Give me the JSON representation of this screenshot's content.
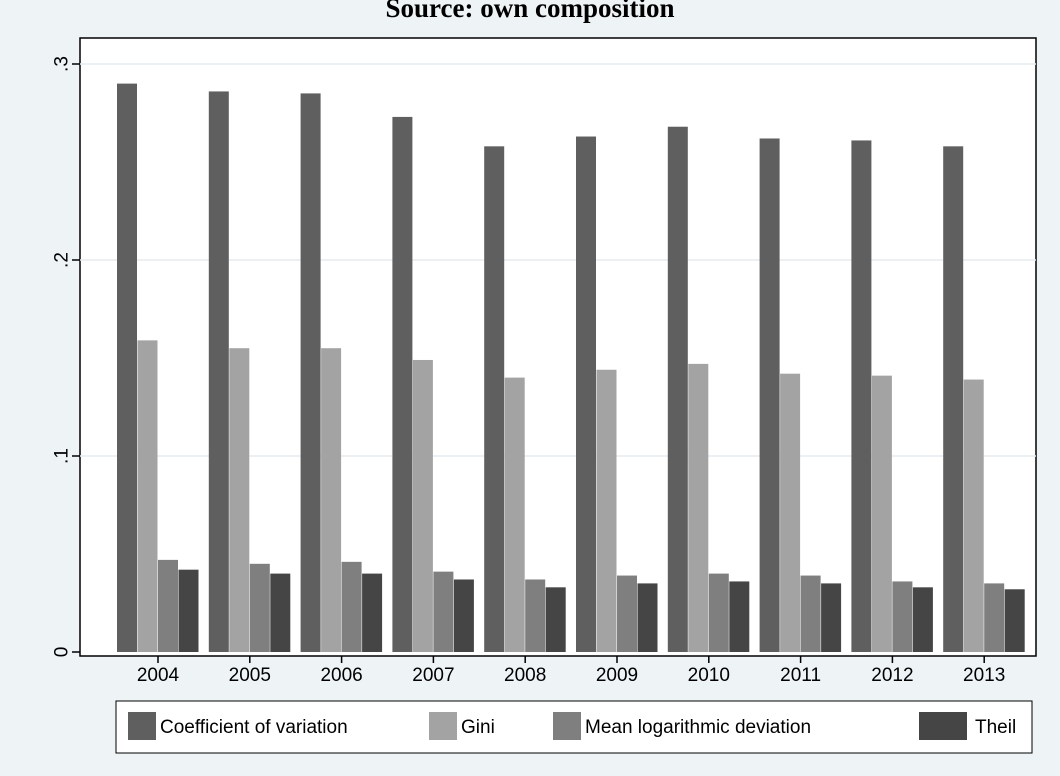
{
  "caption": "Source: own composition",
  "chart_data": {
    "type": "bar",
    "categories": [
      "2004",
      "2005",
      "2006",
      "2007",
      "2008",
      "2009",
      "2010",
      "2011",
      "2012",
      "2013"
    ],
    "series": [
      {
        "name": "Coefficient of variation",
        "color": "#5f5f5f",
        "values": [
          0.29,
          0.286,
          0.285,
          0.273,
          0.258,
          0.263,
          0.268,
          0.262,
          0.261,
          0.258
        ]
      },
      {
        "name": "Gini",
        "color": "#a3a3a3",
        "values": [
          0.159,
          0.155,
          0.155,
          0.149,
          0.14,
          0.144,
          0.147,
          0.142,
          0.141,
          0.139
        ]
      },
      {
        "name": "Mean logarithmic deviation",
        "color": "#7f7f7f",
        "values": [
          0.047,
          0.045,
          0.046,
          0.041,
          0.037,
          0.039,
          0.04,
          0.039,
          0.036,
          0.035
        ]
      },
      {
        "name": "Theil",
        "color": "#454545",
        "values": [
          0.042,
          0.04,
          0.04,
          0.037,
          0.033,
          0.035,
          0.036,
          0.035,
          0.033,
          0.032
        ]
      }
    ],
    "title": "",
    "xlabel": "",
    "ylabel": "",
    "ylim": [
      0,
      0.3
    ],
    "yticks": [
      0,
      0.1,
      0.2,
      0.3
    ],
    "ytick_labels": [
      "0",
      ".1",
      ".2",
      ".3"
    ],
    "grid": "horizontal",
    "legend_position": "bottom",
    "background_color": "#eef3f6",
    "plot_background_color": "#ffffff",
    "gridline_color": "#e6ecef"
  }
}
